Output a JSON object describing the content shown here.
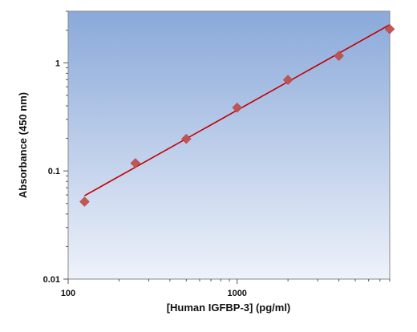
{
  "chart_data": {
    "type": "scatter",
    "title": "",
    "xlabel": "[Human IGFBP-3] (pg/ml)",
    "ylabel": "Absorbance (450 nm)",
    "xscale": "log",
    "yscale": "log",
    "xlim": [
      100,
      8000
    ],
    "ylim": [
      0.01,
      3
    ],
    "x_ticks": [
      100,
      1000
    ],
    "x_tick_labels": [
      "100",
      "1000"
    ],
    "y_ticks": [
      0.01,
      0.1,
      1
    ],
    "y_tick_labels": [
      "0.01",
      "0.1",
      "1"
    ],
    "grid": false,
    "legend": "none",
    "series": [
      {
        "marker": "diamond",
        "x": [
          125,
          250,
          500,
          1000,
          2000,
          4000,
          8000
        ],
        "y": [
          0.052,
          0.118,
          0.198,
          0.385,
          0.695,
          1.16,
          2.05
        ]
      }
    ],
    "fit_line": {
      "x": [
        125,
        8000
      ],
      "y": [
        0.059,
        2.25
      ]
    },
    "colors": {
      "marker": "#c0504d",
      "fit_line": "#c00000",
      "plot_bg_top": "#8aa9da",
      "plot_bg_bottom": "#eef2fa"
    }
  }
}
